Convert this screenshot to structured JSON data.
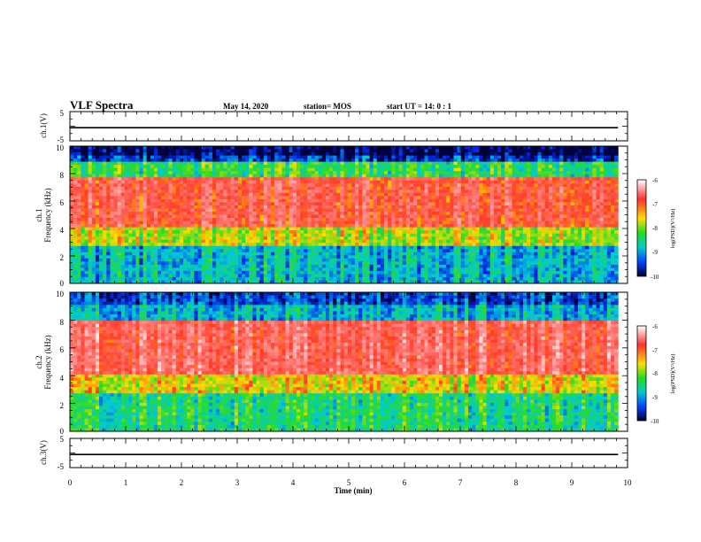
{
  "header": {
    "title": "VLF Spectra",
    "date": "May 14, 2020",
    "station": "station= MOS",
    "start": "start  UT =   14: 0  : 1"
  },
  "chart_data": [
    {
      "type": "line",
      "name": "ch1-waveform",
      "ylabel": "ch.1(V)",
      "yticks": [
        "5",
        "-5"
      ],
      "ylim": [
        -5,
        5
      ],
      "xlim": [
        0,
        10
      ],
      "series": [
        {
          "x": [
            0,
            9.83
          ],
          "y": [
            -0.5,
            -0.5
          ]
        }
      ]
    },
    {
      "type": "heatmap",
      "name": "ch1-spectrogram",
      "ylabel_line1": "ch.1",
      "ylabel_line2": "Frequency (kHz)",
      "yticks": [
        "0",
        "2",
        "4",
        "6",
        "8",
        "10"
      ],
      "ylim": [
        0,
        10
      ],
      "xlim": [
        0,
        9.83
      ],
      "bands": [
        {
          "f0": 9.3,
          "f1": 10,
          "level": -10
        },
        {
          "f0": 8.8,
          "f1": 9.3,
          "level": -9.6
        },
        {
          "f0": 7.8,
          "f1": 8.8,
          "level": -8.5
        },
        {
          "f0": 4.2,
          "f1": 7.8,
          "level": -7.0
        },
        {
          "f0": 2.8,
          "f1": 4.2,
          "level": -8.0
        },
        {
          "f0": 0,
          "f1": 2.8,
          "level": -9.0
        }
      ],
      "colorbar": {
        "label": "log(PSD)(V²/Hz)",
        "ticks": [
          "-6",
          "-7",
          "-8",
          "-9",
          "-10"
        ],
        "range": [
          -10,
          -6
        ]
      }
    },
    {
      "type": "heatmap",
      "name": "ch2-spectrogram",
      "ylabel_line1": "ch.2",
      "ylabel_line2": "Frequency (kHz)",
      "yticks": [
        "0",
        "2",
        "4",
        "6",
        "8",
        "10"
      ],
      "ylim": [
        0,
        10
      ],
      "xlim": [
        0,
        9.83
      ],
      "bands": [
        {
          "f0": 9.0,
          "f1": 10,
          "level": -9.5
        },
        {
          "f0": 8.0,
          "f1": 9.0,
          "level": -9.0
        },
        {
          "f0": 4.0,
          "f1": 8.0,
          "level": -6.8
        },
        {
          "f0": 2.8,
          "f1": 4.0,
          "level": -7.8
        },
        {
          "f0": 0,
          "f1": 2.8,
          "level": -8.6
        }
      ],
      "colorbar": {
        "label": "log(PSD)(V²/Hz)",
        "ticks": [
          "-6",
          "-7",
          "-8",
          "-9",
          "-10"
        ],
        "range": [
          -10,
          -6
        ]
      }
    },
    {
      "type": "line",
      "name": "ch3-waveform",
      "ylabel": "ch.3(V)",
      "yticks": [
        "5",
        "-5"
      ],
      "ylim": [
        -5,
        5
      ],
      "xlim": [
        0,
        10
      ],
      "series": [
        {
          "x": [
            0,
            9.83
          ],
          "y": [
            -0.5,
            -0.5
          ]
        }
      ]
    }
  ],
  "xaxis": {
    "label": "Time  (min)",
    "ticks": [
      "0",
      "1",
      "2",
      "3",
      "4",
      "5",
      "6",
      "7",
      "8",
      "9",
      "10"
    ],
    "range": [
      0,
      10
    ]
  }
}
